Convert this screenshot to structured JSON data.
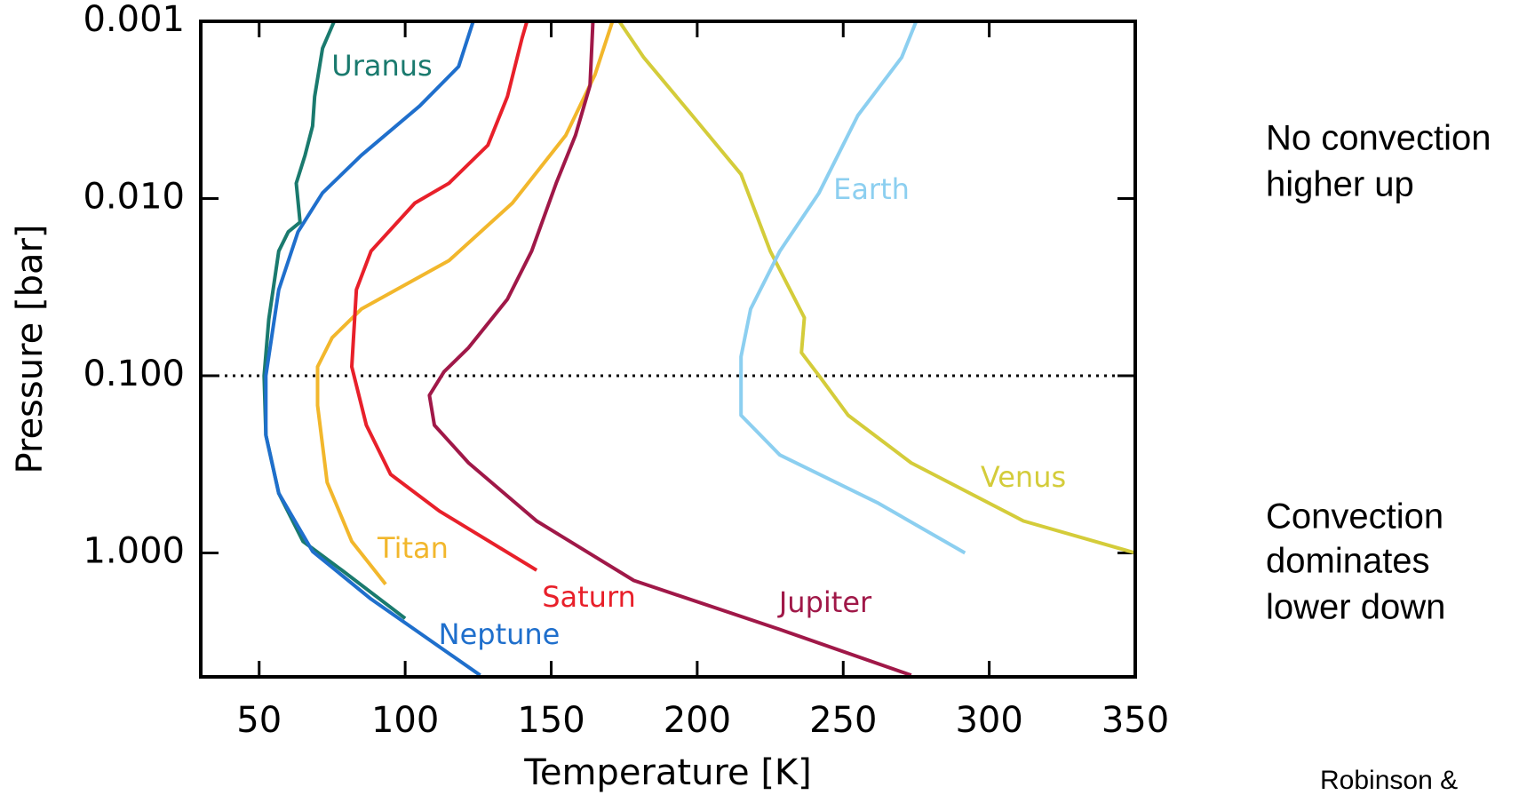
{
  "chart_data": {
    "type": "line",
    "xlabel": "Temperature [K]",
    "ylabel": "Pressure [bar]",
    "xlim": [
      30,
      350
    ],
    "xticks": [
      50,
      100,
      150,
      200,
      250,
      300,
      350
    ],
    "ylim": [
      0.001,
      5
    ],
    "ylog": true,
    "yticks": [
      0.001,
      {
        "value": 0.01,
        "label": "0.010"
      },
      {
        "value": 0.1,
        "label": "0.100"
      },
      {
        "value": 1,
        "label": "1.000"
      }
    ],
    "hline": 0.1,
    "series": [
      {
        "name": "Uranus",
        "color": "#1a7a6e",
        "x": [
          75.7,
          71.7,
          69,
          68.3,
          65.7,
          62.7,
          64,
          60,
          56.7,
          53.3,
          51.7,
          52.3,
          56.7,
          65,
          78.3,
          100
        ],
        "values": [
          0.001,
          0.00142,
          0.00266,
          0.0039,
          0.0057,
          0.0082,
          0.0136,
          0.0154,
          0.0198,
          0.0479,
          0.1,
          0.216,
          0.46,
          0.86,
          1.25,
          2.34
        ]
      },
      {
        "name": "Neptune",
        "color": "#1f6fcc",
        "x": [
          123.3,
          118.3,
          105,
          85,
          71.7,
          63.3,
          56.7,
          52.3,
          52.3,
          56.7,
          68.3,
          88.3,
          125.7
        ],
        "values": [
          0.001,
          0.0018,
          0.003,
          0.0057,
          0.0093,
          0.0154,
          0.0327,
          0.1,
          0.216,
          0.46,
          0.98,
          1.82,
          4.9
        ]
      },
      {
        "name": "Titan",
        "color": "#f2b72c",
        "x": [
          171,
          165,
          155,
          136.7,
          115,
          85,
          75,
          70,
          70,
          73.3,
          81.7,
          93.3
        ],
        "values": [
          0.001,
          0.002,
          0.0044,
          0.0106,
          0.0224,
          0.042,
          0.061,
          0.089,
          0.147,
          0.4,
          0.86,
          1.5
        ]
      },
      {
        "name": "Saturn",
        "color": "#e8202a",
        "x": [
          141.7,
          140,
          135,
          128.3,
          115,
          103.3,
          88.3,
          83.3,
          81.7,
          86.7,
          95,
          111.7,
          145
        ],
        "values": [
          0.001,
          0.00125,
          0.00266,
          0.005,
          0.0082,
          0.0106,
          0.0198,
          0.0327,
          0.089,
          0.19,
          0.36,
          0.58,
          1.25
        ]
      },
      {
        "name": "Jupiter",
        "color": "#a01848",
        "x": [
          164.3,
          163.3,
          158.3,
          151.7,
          143.3,
          135,
          121.7,
          113.3,
          108.3,
          110,
          121.7,
          145,
          178.3,
          228.3,
          273.3
        ],
        "values": [
          0.001,
          0.0023,
          0.0044,
          0.0082,
          0.0198,
          0.037,
          0.0694,
          0.095,
          0.129,
          0.19,
          0.31,
          0.66,
          1.43,
          2.7,
          4.9
        ]
      },
      {
        "name": "Venus",
        "color": "#d4cc3a",
        "x": [
          173.3,
          181.7,
          198.3,
          215,
          225,
          236.7,
          235.7,
          241.7,
          251.7,
          273.3,
          311.7,
          350
        ],
        "values": [
          0.001,
          0.0016,
          0.0034,
          0.0073,
          0.0198,
          0.047,
          0.074,
          0.1,
          0.167,
          0.31,
          0.66,
          1.0
        ]
      },
      {
        "name": "Earth",
        "color": "#8ccff0",
        "x": [
          275,
          270,
          255,
          241.7,
          228.3,
          218.3,
          215,
          215,
          228.3,
          261.7,
          291.7
        ],
        "values": [
          0.001,
          0.0016,
          0.0034,
          0.0093,
          0.0198,
          0.042,
          0.078,
          0.167,
          0.28,
          0.52,
          1.0
        ]
      }
    ],
    "annotations": [
      "No convection",
      "higher up",
      "Convection",
      "dominates",
      "lower down",
      "Robinson &"
    ]
  }
}
